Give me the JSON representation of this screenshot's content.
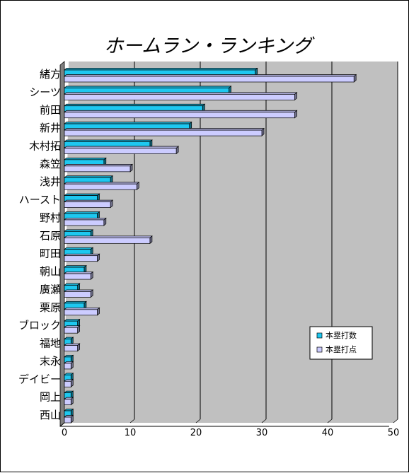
{
  "chart_data": {
    "type": "bar",
    "orientation": "horizontal",
    "style": "3d-clustered",
    "title": "ホームラン・ランキング",
    "categories": [
      "緒方",
      "シーツ",
      "前田",
      "新井",
      "木村拓",
      "森笠",
      "浅井",
      "ハースト",
      "野村",
      "石原",
      "町田",
      "朝山",
      "廣瀬",
      "栗原",
      "ブロック",
      "福地",
      "末永",
      "デイビー",
      "岡上",
      "西山"
    ],
    "series": [
      {
        "name": "本塁打数",
        "color": "#1ec8f0",
        "values": [
          29,
          25,
          21,
          19,
          13,
          6,
          7,
          5,
          5,
          4,
          4,
          3,
          2,
          3,
          2,
          1,
          1,
          1,
          1,
          1
        ]
      },
      {
        "name": "本塁打点",
        "color": "#ccccff",
        "values": [
          44,
          35,
          35,
          30,
          17,
          10,
          11,
          7,
          6,
          13,
          5,
          4,
          4,
          5,
          2,
          2,
          1,
          1,
          1,
          1
        ]
      }
    ],
    "xlim": [
      0,
      50
    ],
    "x_ticks": [
      "0",
      "10",
      "20",
      "30",
      "40",
      "50"
    ],
    "grid": true,
    "legend_position": "right"
  }
}
